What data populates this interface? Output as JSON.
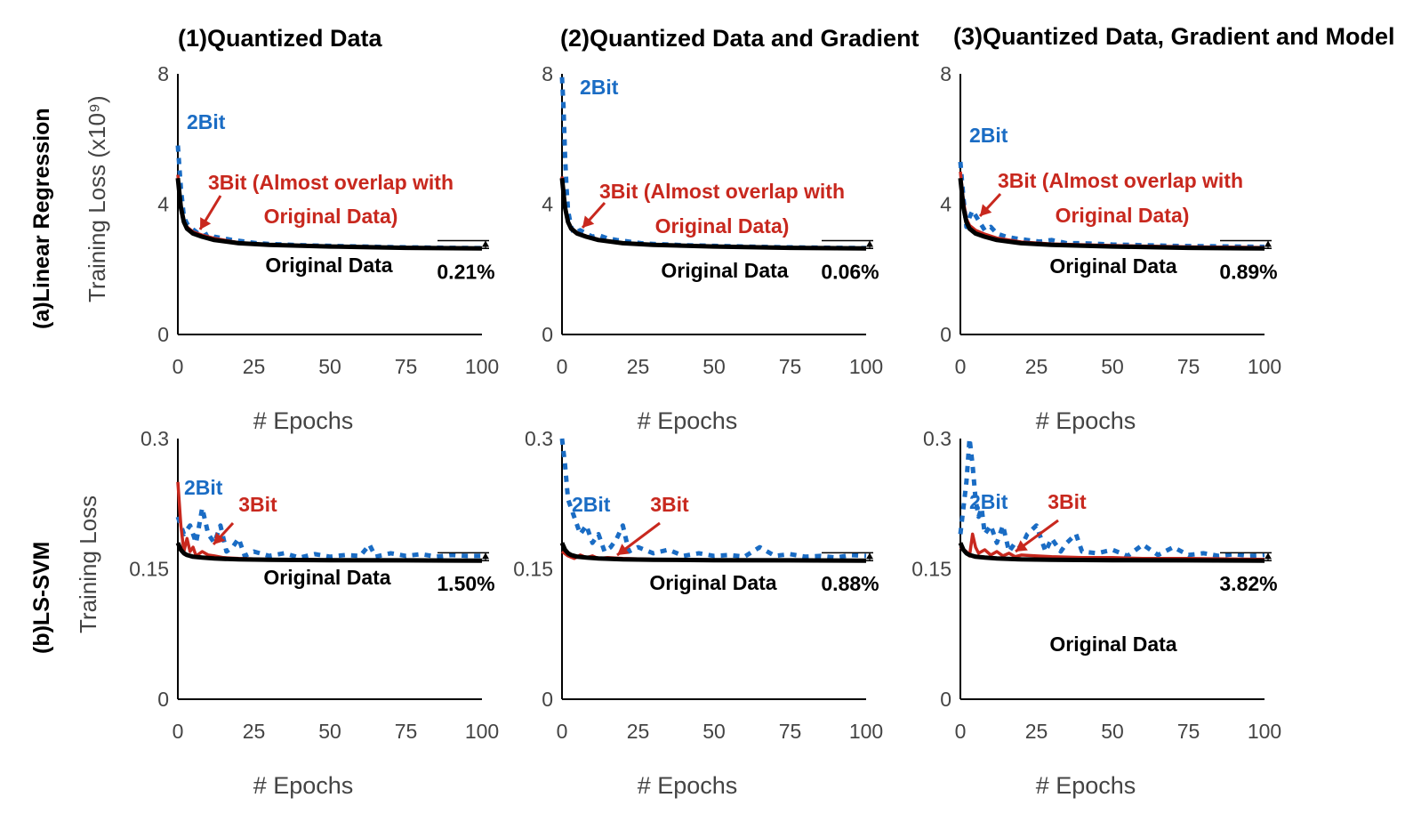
{
  "colors": {
    "two_bit": "#1a6cc4",
    "three_bit": "#c8281e",
    "original": "#000000"
  },
  "column_titles": [
    "(1)Quantized Data",
    "(2)Quantized Data and Gradient",
    "(3)Quantized Data, Gradient and Model"
  ],
  "row_labels": [
    "(a)Linear Regression",
    "(b)LS-SVM"
  ],
  "ylabels": [
    "Training Loss (x10⁹)",
    "Training Loss"
  ],
  "xlabel": "# Epochs",
  "chart_data": [
    {
      "type": "line",
      "row": 0,
      "col": 0,
      "xlim": [
        0,
        100
      ],
      "ylim": [
        0,
        8
      ],
      "xticks": [
        "0",
        "25",
        "50",
        "75",
        "100"
      ],
      "yticks": [
        "0",
        "4",
        "8"
      ],
      "annotations": {
        "two_bit": "2Bit",
        "three_bit_line1": "3Bit (Almost overlap with",
        "three_bit_line2": "Original Data)",
        "original": "Original Data",
        "gap": "0.21%"
      },
      "series": [
        {
          "name": "Original Data",
          "x": [
            0,
            1,
            2,
            3,
            5,
            8,
            12,
            20,
            30,
            50,
            75,
            100
          ],
          "y": [
            4.8,
            3.9,
            3.45,
            3.25,
            3.1,
            3.0,
            2.9,
            2.8,
            2.75,
            2.7,
            2.66,
            2.64
          ]
        },
        {
          "name": "3Bit",
          "x": [
            0,
            1,
            2,
            3,
            5,
            8,
            12,
            20,
            30,
            50,
            75,
            100
          ],
          "y": [
            4.9,
            4.0,
            3.5,
            3.3,
            3.15,
            3.05,
            2.95,
            2.82,
            2.76,
            2.71,
            2.67,
            2.65
          ]
        },
        {
          "name": "2Bit",
          "x": [
            0,
            1,
            2,
            3,
            4,
            6,
            8,
            10,
            12,
            15,
            18,
            22,
            26,
            30,
            40,
            50,
            60,
            70,
            80,
            90,
            100
          ],
          "y": [
            5.8,
            4.5,
            3.6,
            3.4,
            3.3,
            3.15,
            3.0,
            3.1,
            3.0,
            2.95,
            2.9,
            2.85,
            2.8,
            2.78,
            2.74,
            2.72,
            2.7,
            2.68,
            2.67,
            2.66,
            2.65
          ]
        }
      ]
    },
    {
      "type": "line",
      "row": 0,
      "col": 1,
      "xlim": [
        0,
        100
      ],
      "ylim": [
        0,
        8
      ],
      "xticks": [
        "0",
        "25",
        "50",
        "75",
        "100"
      ],
      "yticks": [
        "0",
        "4",
        "8"
      ],
      "annotations": {
        "two_bit": "2Bit",
        "three_bit_line1": "3Bit (Almost overlap with",
        "three_bit_line2": "Original Data)",
        "original": "Original Data",
        "gap": "0.06%"
      },
      "series": [
        {
          "name": "Original Data",
          "x": [
            0,
            1,
            2,
            3,
            5,
            8,
            12,
            20,
            30,
            50,
            75,
            100
          ],
          "y": [
            4.8,
            3.9,
            3.45,
            3.25,
            3.1,
            3.0,
            2.9,
            2.8,
            2.75,
            2.7,
            2.66,
            2.64
          ]
        },
        {
          "name": "3Bit",
          "x": [
            0,
            1,
            2,
            3,
            5,
            8,
            12,
            20,
            30,
            50,
            75,
            100
          ],
          "y": [
            4.85,
            3.95,
            3.48,
            3.28,
            3.12,
            3.02,
            2.92,
            2.81,
            2.76,
            2.7,
            2.66,
            2.64
          ]
        },
        {
          "name": "2Bit",
          "x": [
            0,
            0.5,
            1,
            1.5,
            2,
            3,
            4,
            6,
            8,
            10,
            12,
            15,
            18,
            22,
            26,
            30,
            40,
            50,
            60,
            70,
            80,
            90,
            100
          ],
          "y": [
            7.9,
            7.0,
            5.5,
            4.5,
            3.8,
            3.3,
            3.1,
            3.2,
            3.1,
            3.0,
            3.05,
            2.95,
            2.9,
            2.85,
            2.8,
            2.78,
            2.74,
            2.72,
            2.7,
            2.68,
            2.67,
            2.66,
            2.65
          ]
        }
      ]
    },
    {
      "type": "line",
      "row": 0,
      "col": 2,
      "xlim": [
        0,
        100
      ],
      "ylim": [
        0,
        8
      ],
      "xticks": [
        "0",
        "25",
        "50",
        "75",
        "100"
      ],
      "yticks": [
        "0",
        "4",
        "8"
      ],
      "annotations": {
        "two_bit": "2Bit",
        "three_bit_line1": "3Bit (Almost overlap with",
        "three_bit_line2": "Original Data)",
        "original": "Original Data",
        "gap": "0.89%"
      },
      "series": [
        {
          "name": "Original Data",
          "x": [
            0,
            1,
            2,
            3,
            5,
            8,
            12,
            20,
            30,
            50,
            75,
            100
          ],
          "y": [
            4.8,
            3.9,
            3.45,
            3.25,
            3.1,
            3.0,
            2.9,
            2.8,
            2.75,
            2.7,
            2.66,
            2.64
          ]
        },
        {
          "name": "3Bit",
          "x": [
            0,
            1,
            2,
            3,
            5,
            8,
            12,
            20,
            30,
            50,
            75,
            100
          ],
          "y": [
            5.0,
            4.1,
            3.55,
            3.35,
            3.2,
            3.08,
            2.96,
            2.84,
            2.78,
            2.73,
            2.69,
            2.67
          ]
        },
        {
          "name": "2Bit",
          "x": [
            0,
            1,
            2,
            3,
            4,
            6,
            8,
            10,
            12,
            15,
            18,
            22,
            26,
            30,
            35,
            40,
            50,
            60,
            70,
            80,
            90,
            100
          ],
          "y": [
            5.3,
            4.2,
            3.3,
            3.6,
            3.8,
            3.5,
            3.2,
            3.3,
            3.1,
            3.0,
            2.95,
            2.9,
            2.85,
            2.9,
            2.8,
            2.8,
            2.76,
            2.74,
            2.72,
            2.71,
            2.7,
            2.69
          ]
        }
      ]
    },
    {
      "type": "line",
      "row": 1,
      "col": 0,
      "xlim": [
        0,
        100
      ],
      "ylim": [
        0,
        0.3
      ],
      "xticks": [
        "0",
        "25",
        "50",
        "75",
        "100"
      ],
      "yticks": [
        "0",
        "0.15",
        "0.3"
      ],
      "annotations": {
        "two_bit": "2Bit",
        "three_bit_line1": "3Bit",
        "three_bit_line2": "",
        "original": "Original Data",
        "gap": "1.50%"
      },
      "series": [
        {
          "name": "Original Data",
          "x": [
            0,
            1,
            2,
            3,
            5,
            8,
            12,
            20,
            30,
            50,
            75,
            100
          ],
          "y": [
            0.18,
            0.172,
            0.168,
            0.166,
            0.164,
            0.163,
            0.162,
            0.161,
            0.1605,
            0.16,
            0.1598,
            0.1595
          ]
        },
        {
          "name": "3Bit",
          "x": [
            0,
            1,
            2,
            3,
            4,
            5,
            6,
            8,
            10,
            12,
            15,
            20,
            30,
            50,
            75,
            100
          ],
          "y": [
            0.25,
            0.2,
            0.17,
            0.185,
            0.17,
            0.175,
            0.165,
            0.17,
            0.166,
            0.165,
            0.163,
            0.162,
            0.161,
            0.1605,
            0.16,
            0.16
          ]
        },
        {
          "name": "2Bit",
          "x": [
            0,
            2,
            4,
            6,
            8,
            10,
            12,
            14,
            16,
            18,
            20,
            22,
            25,
            30,
            35,
            40,
            45,
            50,
            55,
            60,
            63,
            65,
            70,
            75,
            80,
            85,
            90,
            95,
            100
          ],
          "y": [
            0.21,
            0.19,
            0.2,
            0.18,
            0.22,
            0.19,
            0.18,
            0.2,
            0.17,
            0.175,
            0.185,
            0.165,
            0.17,
            0.165,
            0.168,
            0.163,
            0.167,
            0.164,
            0.166,
            0.165,
            0.178,
            0.164,
            0.168,
            0.165,
            0.167,
            0.164,
            0.166,
            0.165,
            0.165
          ]
        }
      ]
    },
    {
      "type": "line",
      "row": 1,
      "col": 1,
      "xlim": [
        0,
        100
      ],
      "ylim": [
        0,
        0.3
      ],
      "xticks": [
        "0",
        "25",
        "50",
        "75",
        "100"
      ],
      "yticks": [
        "0",
        "0.15",
        "0.3"
      ],
      "annotations": {
        "two_bit": "2Bit",
        "three_bit_line1": "3Bit",
        "three_bit_line2": "",
        "original": "Original Data",
        "gap": "0.88%"
      },
      "series": [
        {
          "name": "Original Data",
          "x": [
            0,
            1,
            2,
            3,
            5,
            8,
            12,
            20,
            30,
            50,
            75,
            100
          ],
          "y": [
            0.18,
            0.172,
            0.168,
            0.166,
            0.164,
            0.163,
            0.162,
            0.161,
            0.1605,
            0.16,
            0.1598,
            0.1595
          ]
        },
        {
          "name": "3Bit",
          "x": [
            0,
            2,
            4,
            6,
            8,
            10,
            12,
            15,
            20,
            30,
            50,
            75,
            100
          ],
          "y": [
            0.17,
            0.165,
            0.162,
            0.166,
            0.163,
            0.165,
            0.162,
            0.163,
            0.162,
            0.161,
            0.1605,
            0.16,
            0.16
          ]
        },
        {
          "name": "2Bit",
          "x": [
            0,
            1,
            2,
            4,
            6,
            8,
            10,
            12,
            14,
            16,
            18,
            20,
            22,
            25,
            30,
            35,
            40,
            45,
            50,
            55,
            60,
            65,
            70,
            75,
            80,
            85,
            90,
            95,
            100
          ],
          "y": [
            0.3,
            0.27,
            0.23,
            0.21,
            0.19,
            0.2,
            0.18,
            0.19,
            0.17,
            0.175,
            0.185,
            0.2,
            0.17,
            0.175,
            0.168,
            0.172,
            0.165,
            0.168,
            0.165,
            0.166,
            0.164,
            0.175,
            0.165,
            0.167,
            0.164,
            0.165,
            0.163,
            0.166,
            0.165
          ]
        }
      ]
    },
    {
      "type": "line",
      "row": 1,
      "col": 2,
      "xlim": [
        0,
        100
      ],
      "ylim": [
        0,
        0.3
      ],
      "xticks": [
        "0",
        "25",
        "50",
        "75",
        "100"
      ],
      "yticks": [
        "0",
        "0.15",
        "0.3"
      ],
      "annotations": {
        "two_bit": "2Bit",
        "three_bit_line1": "3Bit",
        "three_bit_line2": "",
        "original": "Original Data",
        "gap": "3.82%"
      },
      "series": [
        {
          "name": "Original Data",
          "x": [
            0,
            1,
            2,
            3,
            5,
            8,
            12,
            20,
            30,
            50,
            75,
            100
          ],
          "y": [
            0.18,
            0.172,
            0.168,
            0.166,
            0.164,
            0.163,
            0.162,
            0.161,
            0.1605,
            0.16,
            0.1598,
            0.1595
          ]
        },
        {
          "name": "3Bit",
          "x": [
            0,
            2,
            3,
            4,
            5,
            6,
            8,
            10,
            12,
            14,
            16,
            18,
            20,
            25,
            30,
            40,
            50,
            60,
            75,
            100
          ],
          "y": [
            0.175,
            0.17,
            0.165,
            0.19,
            0.175,
            0.168,
            0.172,
            0.166,
            0.17,
            0.165,
            0.168,
            0.164,
            0.166,
            0.165,
            0.164,
            0.163,
            0.163,
            0.162,
            0.162,
            0.161
          ]
        },
        {
          "name": "2Bit",
          "x": [
            0,
            2,
            3,
            4,
            5,
            6,
            7,
            8,
            10,
            12,
            14,
            16,
            18,
            20,
            22,
            25,
            28,
            30,
            33,
            35,
            38,
            40,
            45,
            50,
            55,
            60,
            65,
            70,
            75,
            80,
            85,
            90,
            95,
            100
          ],
          "y": [
            0.19,
            0.25,
            0.3,
            0.27,
            0.23,
            0.21,
            0.22,
            0.19,
            0.2,
            0.18,
            0.2,
            0.17,
            0.18,
            0.175,
            0.19,
            0.2,
            0.17,
            0.185,
            0.17,
            0.18,
            0.19,
            0.17,
            0.168,
            0.172,
            0.165,
            0.178,
            0.166,
            0.175,
            0.166,
            0.168,
            0.165,
            0.167,
            0.165,
            0.166
          ]
        }
      ]
    }
  ]
}
